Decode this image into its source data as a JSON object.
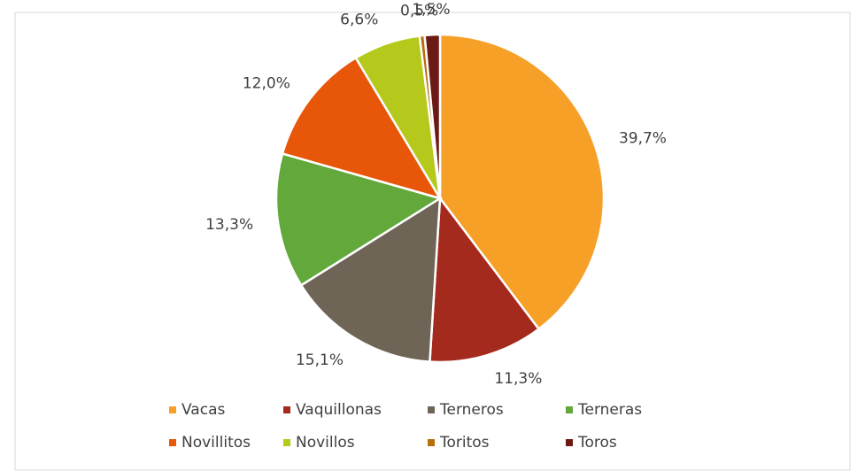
{
  "chart_data": {
    "type": "pie",
    "categories": [
      "Vacas",
      "Vaquillonas",
      "Terneros",
      "Terneras",
      "Novillitos",
      "Novillos",
      "Toritos",
      "Toros"
    ],
    "values": [
      39.7,
      11.3,
      15.1,
      13.3,
      12.0,
      6.6,
      0.5,
      1.5
    ],
    "value_labels": [
      "39,7%",
      "11,3%",
      "15,1%",
      "13,3%",
      "12,0%",
      "6,6%",
      "0,5%",
      "1,5%"
    ],
    "colors": [
      "#f7a028",
      "#a52a1e",
      "#6e6556",
      "#62a83a",
      "#e8560a",
      "#b5c81c",
      "#b86e0a",
      "#6b1a14"
    ],
    "legend": "bottom"
  }
}
